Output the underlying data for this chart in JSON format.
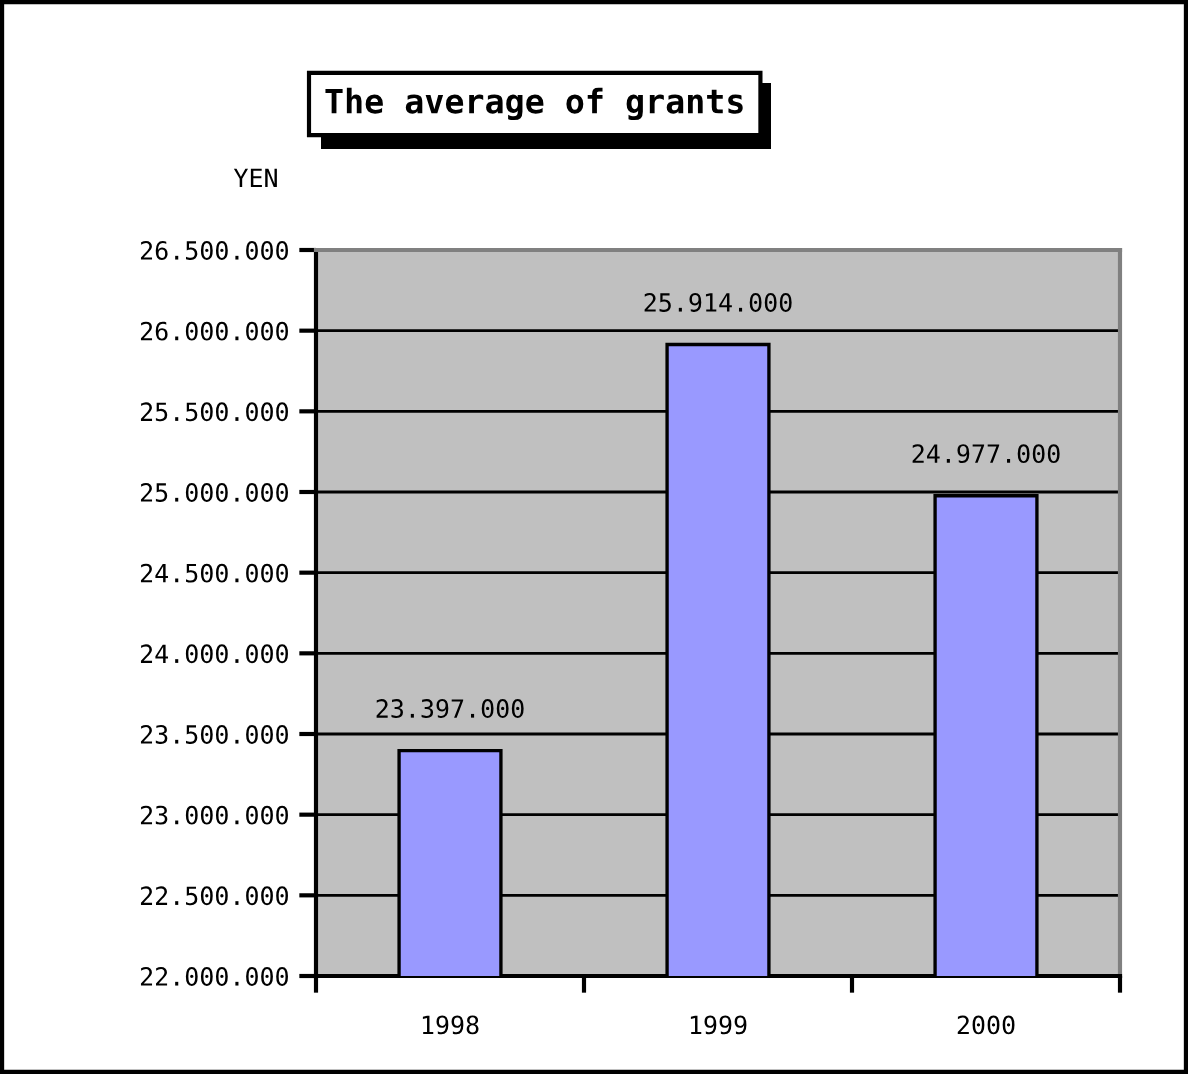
{
  "chart_data": {
    "type": "bar",
    "title": "The average of grants",
    "ylabel": "YEN",
    "categories": [
      "1998",
      "1999",
      "2000"
    ],
    "values": [
      23397000,
      25914000,
      24977000
    ],
    "value_labels": [
      "23.397.000",
      "25.914.000",
      "24.977.000"
    ],
    "color": "#9999ff",
    "ylim": [
      22000000,
      26500000
    ],
    "yticks": [
      {
        "value": 22000000,
        "label": "22.000.000"
      },
      {
        "value": 22500000,
        "label": "22.500.000"
      },
      {
        "value": 23000000,
        "label": "23.000.000"
      },
      {
        "value": 23500000,
        "label": "23.500.000"
      },
      {
        "value": 24000000,
        "label": "24.000.000"
      },
      {
        "value": 24500000,
        "label": "24.500.000"
      },
      {
        "value": 25000000,
        "label": "25.000.000"
      },
      {
        "value": 25500000,
        "label": "25.500.000"
      },
      {
        "value": 26000000,
        "label": "26.000.000"
      },
      {
        "value": 26500000,
        "label": "26.500.000"
      }
    ],
    "grid": "y"
  }
}
